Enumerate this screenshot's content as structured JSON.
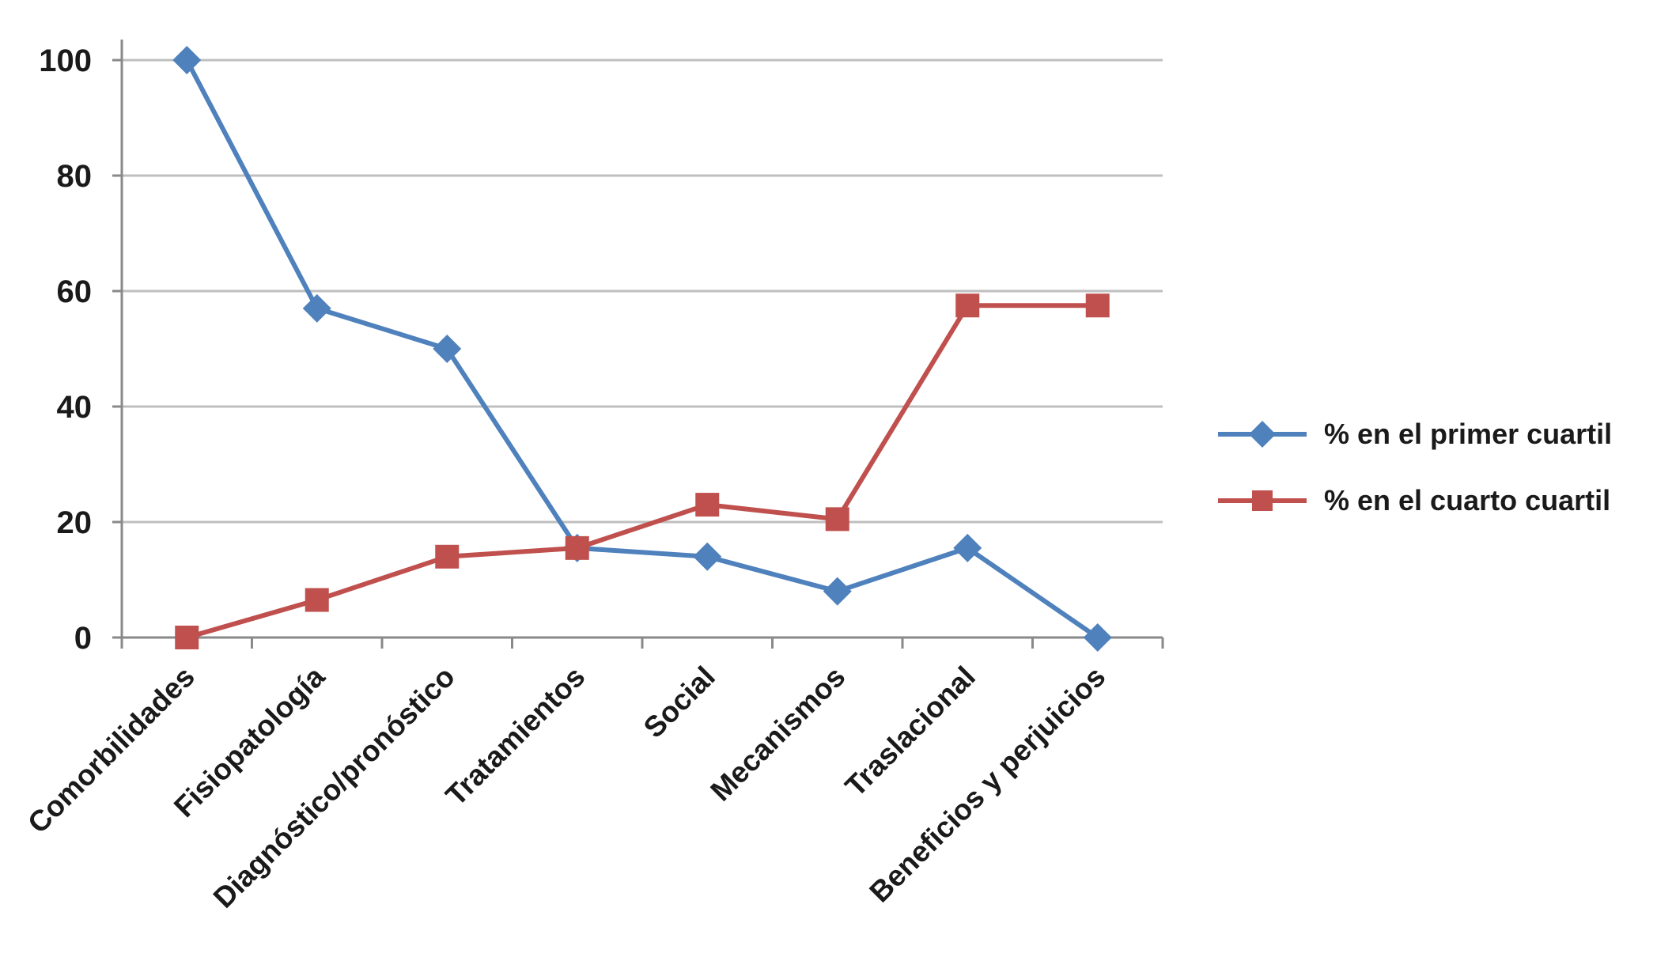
{
  "chart_data": {
    "type": "line",
    "categories": [
      "Comorbilidades",
      "Fisiopatología",
      "Diagnóstico/pronóstico",
      "Tratamientos",
      "Social",
      "Mecanismos",
      "Traslacional",
      "Beneficios y perjuicios"
    ],
    "series": [
      {
        "name": "% en el primer cuartil",
        "color": "#4F81BD",
        "marker": "diamond",
        "values": [
          100,
          57,
          50,
          15.5,
          14,
          8,
          15.5,
          0
        ]
      },
      {
        "name": "% en el cuarto cuartil",
        "color": "#C0504D",
        "marker": "square",
        "values": [
          0,
          6.5,
          14,
          15.5,
          23,
          20.5,
          57.5,
          57.5
        ]
      }
    ],
    "title": "",
    "xlabel": "",
    "ylabel": "",
    "ylim": [
      0,
      100
    ],
    "yticks": [
      0,
      20,
      40,
      60,
      80,
      100
    ],
    "grid": true,
    "legend_position": "right",
    "gridline_color": "#BFBFBF",
    "axis_color": "#898989",
    "tick_label_color": "#1a1a1a"
  }
}
